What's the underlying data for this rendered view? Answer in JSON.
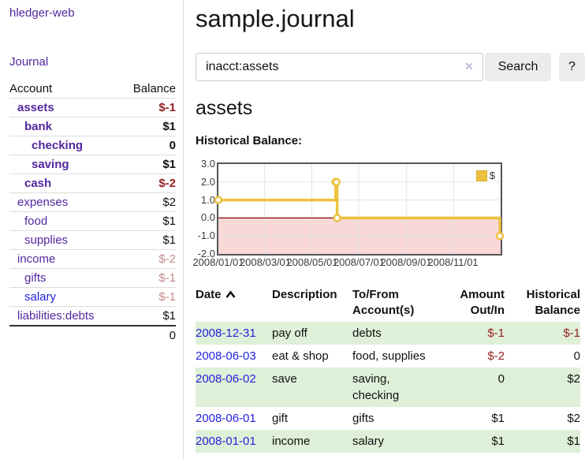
{
  "app": {
    "brand": "hledger-web"
  },
  "sidebar": {
    "nav": {
      "journal": "Journal"
    },
    "accounts": {
      "headers": {
        "account": "Account",
        "balance": "Balance"
      },
      "rows": [
        {
          "name": "assets",
          "balance": "$-1"
        },
        {
          "name": "bank",
          "balance": "$1"
        },
        {
          "name": "checking",
          "balance": "0"
        },
        {
          "name": "saving",
          "balance": "$1"
        },
        {
          "name": "cash",
          "balance": "$-2"
        },
        {
          "name": "expenses",
          "balance": "$2"
        },
        {
          "name": "food",
          "balance": "$1"
        },
        {
          "name": "supplies",
          "balance": "$1"
        },
        {
          "name": "income",
          "balance": "$-2"
        },
        {
          "name": "gifts",
          "balance": "$-1"
        },
        {
          "name": "salary",
          "balance": "$-1"
        },
        {
          "name": "liabilities:debts",
          "balance": "$1"
        }
      ],
      "total": "0"
    }
  },
  "main": {
    "title": "sample.journal",
    "search": {
      "value": "inacct:assets",
      "clear_icon": "✕",
      "search_button": "Search",
      "help_button": "?"
    },
    "account_heading": "assets",
    "chart_label": "Historical Balance:",
    "register": {
      "headers": {
        "date": "Date",
        "description": "Description",
        "tofrom": "To/From Account(s)",
        "amount": "Amount Out/In",
        "balance": "Historical Balance"
      },
      "rows": [
        {
          "date": "2008-12-31",
          "description": "pay off",
          "accounts": "debts",
          "amount": "$-1",
          "balance": "$-1"
        },
        {
          "date": "2008-06-03",
          "description": "eat & shop",
          "accounts": "food, supplies",
          "amount": "$-2",
          "balance": "0"
        },
        {
          "date": "2008-06-02",
          "description": "save",
          "accounts": "saving, checking",
          "amount": "0",
          "balance": "$2"
        },
        {
          "date": "2008-06-01",
          "description": "gift",
          "accounts": "gifts",
          "amount": "$1",
          "balance": "$2"
        },
        {
          "date": "2008-01-01",
          "description": "income",
          "accounts": "salary",
          "amount": "$1",
          "balance": "$1"
        }
      ]
    }
  },
  "chart_data": {
    "type": "line",
    "title": "Historical Balance:",
    "step": "post",
    "x_range": [
      "2008-01-01",
      "2009-01-01"
    ],
    "ylim": [
      -2,
      3
    ],
    "grid": true,
    "legend": {
      "position": "top-right",
      "label": "$"
    },
    "series": [
      {
        "name": "$",
        "points": [
          [
            "2008-01-01",
            1
          ],
          [
            "2008-06-01",
            2
          ],
          [
            "2008-06-02",
            2
          ],
          [
            "2008-06-03",
            0
          ],
          [
            "2008-12-31",
            -1
          ]
        ]
      }
    ],
    "x_ticks": [
      {
        "date": "2008-01-01",
        "label": "2008/01/01"
      },
      {
        "date": "2008-03-01",
        "label": "2008/03/01"
      },
      {
        "date": "2008-05-01",
        "label": "2008/05/01"
      },
      {
        "date": "2008-07-01",
        "label": "2008/07/01"
      },
      {
        "date": "2008-09-01",
        "label": "2008/09/01"
      },
      {
        "date": "2008-11-01",
        "label": "2008/11/01"
      }
    ],
    "y_ticks": [
      {
        "value": 3,
        "label": "3.0"
      },
      {
        "value": 2,
        "label": "2.0"
      },
      {
        "value": 1,
        "label": "1.0"
      },
      {
        "value": 0,
        "label": "0.0"
      },
      {
        "value": -1,
        "label": "-1.0"
      },
      {
        "value": -2,
        "label": "-2.0"
      }
    ],
    "colors": {
      "line": "#edc240",
      "marker_fill": "#ffffff",
      "negative_zone": "#f9d8d8",
      "zero_line": "#8b0000",
      "grid": "#e3e3e3"
    }
  }
}
